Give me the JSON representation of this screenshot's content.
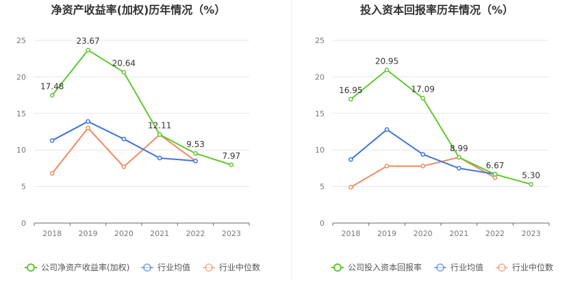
{
  "chart_data": [
    {
      "type": "line",
      "title": "净资产收益率(加权)历年情况（%）",
      "categories": [
        "2018",
        "2019",
        "2020",
        "2021",
        "2022",
        "2023"
      ],
      "ylim": [
        0,
        25
      ],
      "yticks": [
        "0",
        "5",
        "10",
        "15",
        "20",
        "25"
      ],
      "grid": true,
      "legend_position": "bottom",
      "series": [
        {
          "name": "公司净资产收益率(加权)",
          "color": "#5ec72f",
          "values": [
            17.48,
            23.67,
            20.64,
            12.11,
            9.53,
            7.97
          ],
          "labels": [
            "17.48",
            "23.67",
            "20.64",
            "12.11",
            "9.53",
            "7.97"
          ]
        },
        {
          "name": "行业均值",
          "color": "#3d74d8",
          "values": [
            11.3,
            13.9,
            11.5,
            8.9,
            8.5,
            null
          ]
        },
        {
          "name": "行业中位数",
          "color": "#f0895f",
          "values": [
            6.8,
            13.0,
            7.7,
            12.1,
            8.5,
            null
          ]
        }
      ]
    },
    {
      "type": "line",
      "title": "投入资本回报率历年情况（%）",
      "categories": [
        "2018",
        "2019",
        "2020",
        "2021",
        "2022",
        "2023"
      ],
      "ylim": [
        0,
        25
      ],
      "yticks": [
        "0",
        "5",
        "10",
        "15",
        "20",
        "25"
      ],
      "grid": true,
      "legend_position": "bottom",
      "series": [
        {
          "name": "公司投入资本回报率",
          "color": "#5ec72f",
          "values": [
            16.95,
            20.95,
            17.09,
            8.99,
            6.67,
            5.3
          ],
          "labels": [
            "16.95",
            "20.95",
            "17.09",
            "8.99",
            "6.67",
            "5.30"
          ]
        },
        {
          "name": "行业均值",
          "color": "#3d74d8",
          "values": [
            8.7,
            12.8,
            9.4,
            7.5,
            6.7,
            null
          ]
        },
        {
          "name": "行业中位数",
          "color": "#f0895f",
          "values": [
            4.9,
            7.8,
            7.8,
            9.0,
            6.2,
            null
          ]
        }
      ]
    }
  ]
}
